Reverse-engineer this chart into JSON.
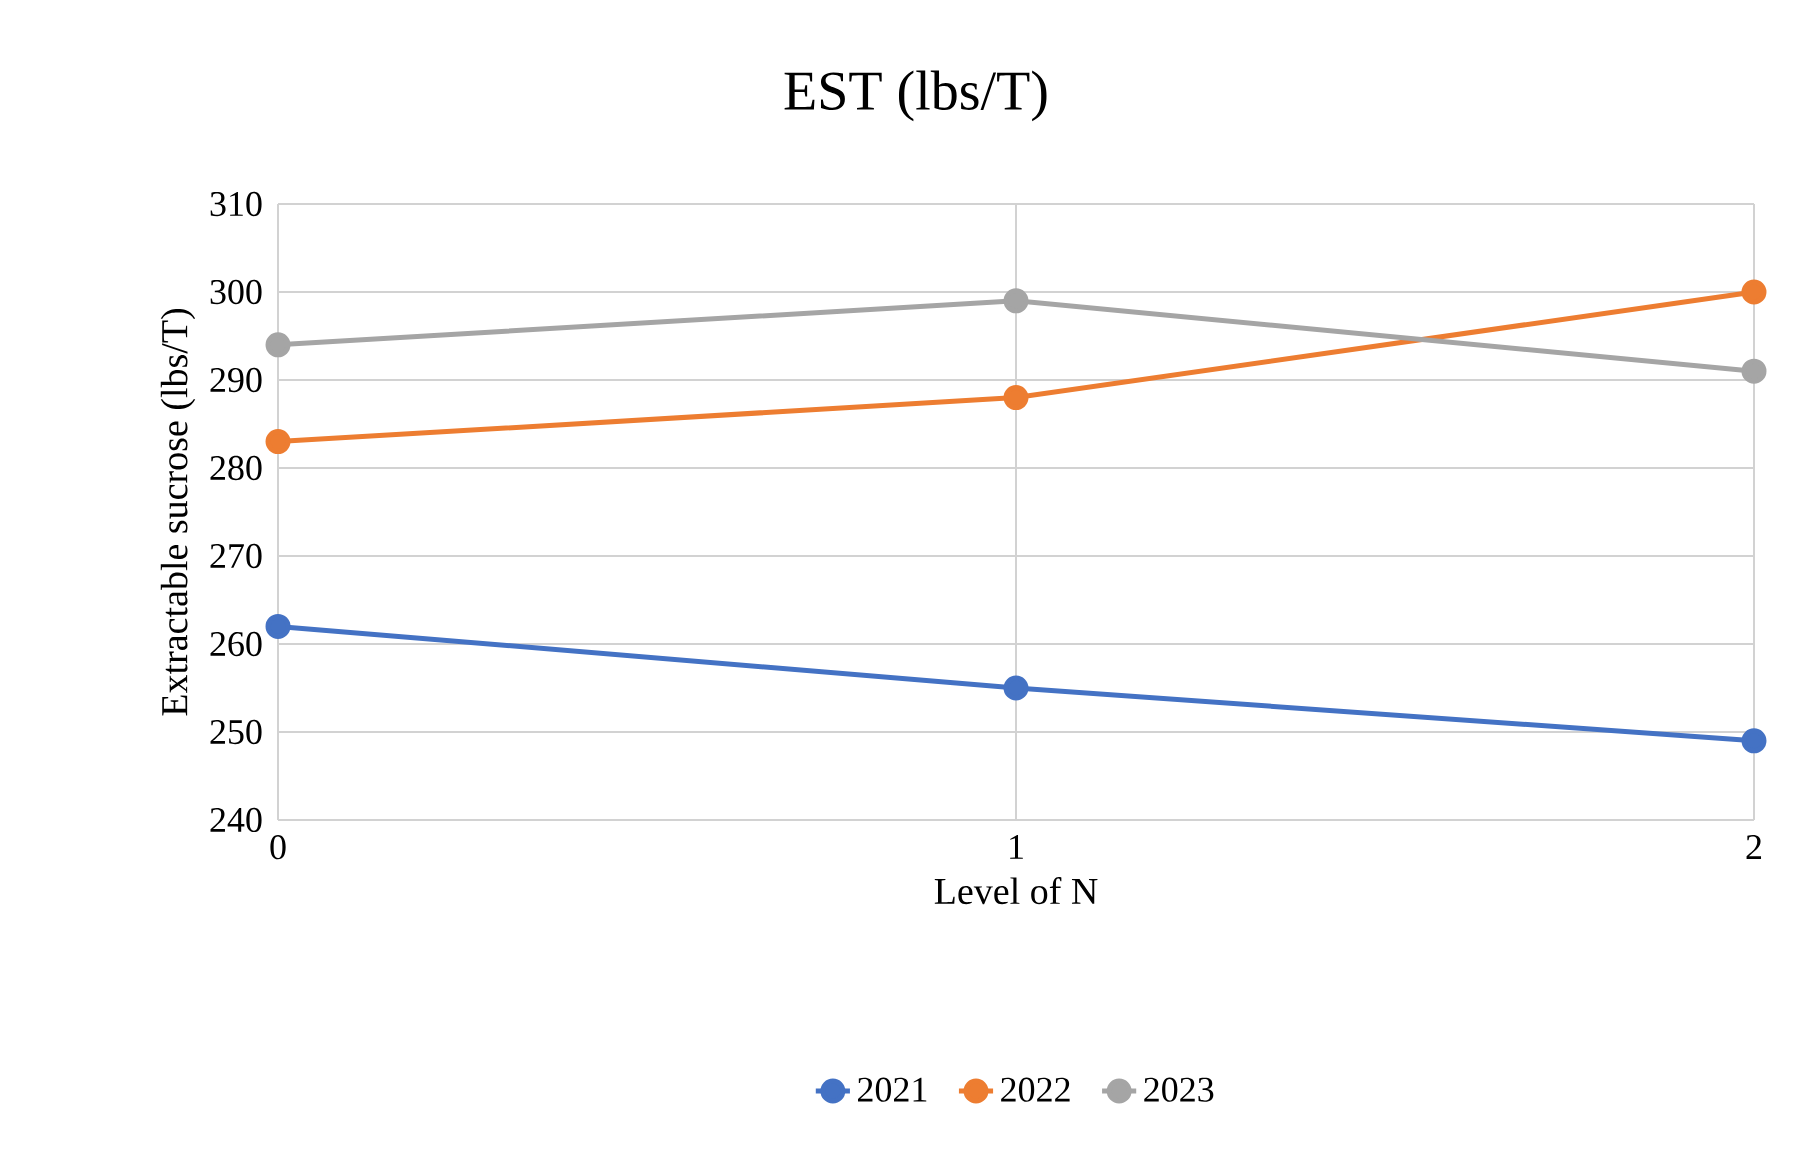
{
  "chart_data": {
    "type": "line",
    "title": "EST (lbs/T)",
    "xlabel": "Level of N",
    "ylabel": "Extractable sucrose (lbs/T)",
    "x": [
      0,
      1,
      2
    ],
    "xlim": [
      0,
      2
    ],
    "xticks": [
      0,
      1,
      2
    ],
    "ylim": [
      240,
      310
    ],
    "yticks": [
      240,
      250,
      260,
      270,
      280,
      290,
      300,
      310
    ],
    "grid": true,
    "legend": "bottom",
    "marker": "circle",
    "line_style": "solid",
    "series": [
      {
        "name": "2021",
        "color": "#4472c4",
        "values": [
          262,
          255,
          249
        ]
      },
      {
        "name": "2022",
        "color": "#ed7d31",
        "values": [
          283,
          288,
          300
        ]
      },
      {
        "name": "2023",
        "color": "#a5a5a5",
        "values": [
          294,
          299,
          291
        ]
      }
    ]
  }
}
